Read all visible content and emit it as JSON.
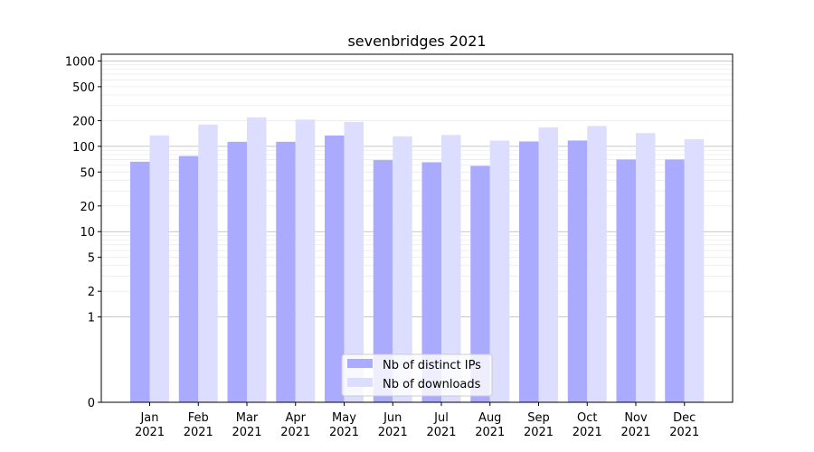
{
  "chart_data": {
    "type": "bar",
    "title": "sevenbridges 2021",
    "xlabel": "",
    "ylabel": "",
    "y_scale": "symlog",
    "ylim": [
      0,
      1200
    ],
    "y_ticks": [
      0,
      1,
      2,
      5,
      10,
      20,
      50,
      100,
      200,
      500,
      1000
    ],
    "y_tick_labels": [
      "0",
      "1",
      "2",
      "5",
      "10",
      "20",
      "50",
      "100",
      "200",
      "500",
      "1000"
    ],
    "grid": true,
    "legend_position": "bottom-center",
    "categories": [
      {
        "month": "Jan",
        "year": "2021"
      },
      {
        "month": "Feb",
        "year": "2021"
      },
      {
        "month": "Mar",
        "year": "2021"
      },
      {
        "month": "Apr",
        "year": "2021"
      },
      {
        "month": "May",
        "year": "2021"
      },
      {
        "month": "Jun",
        "year": "2021"
      },
      {
        "month": "Jul",
        "year": "2021"
      },
      {
        "month": "Aug",
        "year": "2021"
      },
      {
        "month": "Sep",
        "year": "2021"
      },
      {
        "month": "Oct",
        "year": "2021"
      },
      {
        "month": "Nov",
        "year": "2021"
      },
      {
        "month": "Dec",
        "year": "2021"
      }
    ],
    "series": [
      {
        "name": "Nb of distinct IPs",
        "color": "#aaaaff",
        "values": [
          66,
          77,
          113,
          113,
          134,
          69,
          65,
          59,
          114,
          117,
          70,
          70
        ]
      },
      {
        "name": "Nb of downloads",
        "color": "#ddddff",
        "values": [
          134,
          180,
          218,
          206,
          193,
          131,
          136,
          117,
          167,
          173,
          143,
          121
        ]
      }
    ]
  }
}
